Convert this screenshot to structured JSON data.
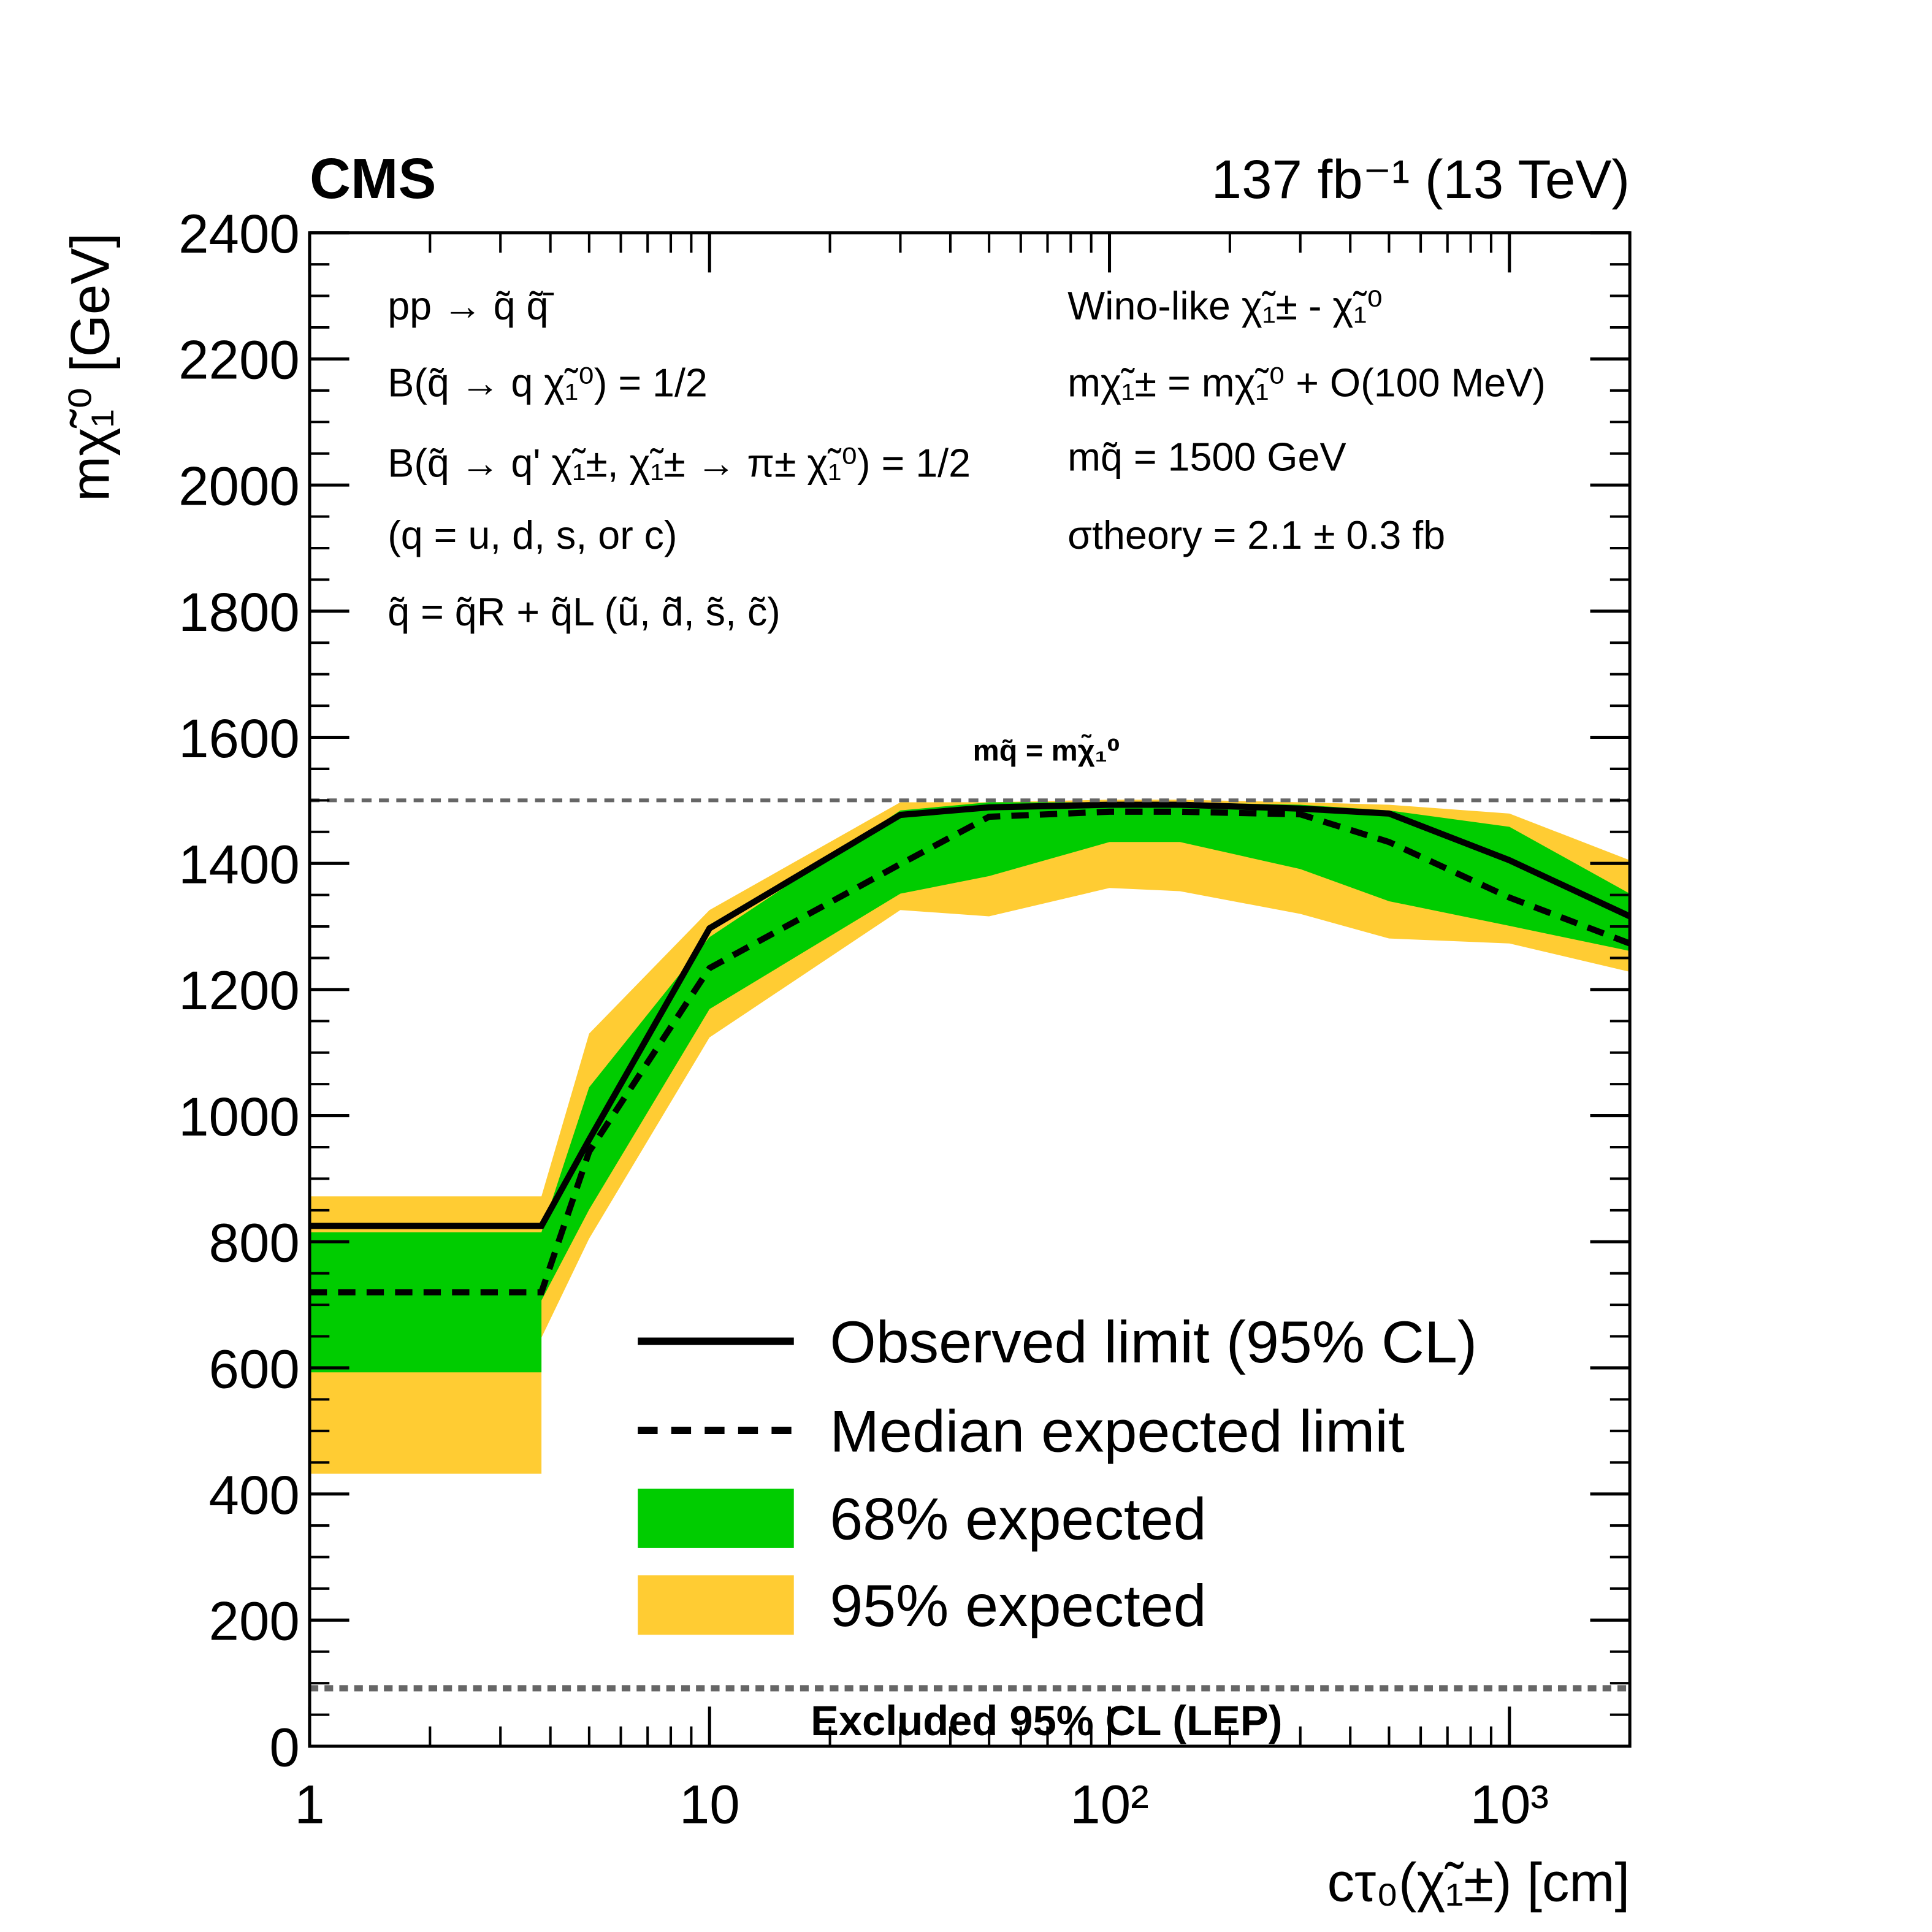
{
  "chart_data": {
    "type": "limit-bands",
    "experiment": "CMS",
    "luminosity": "137 fb⁻¹ (13 TeV)",
    "x_label": "cτ₀(χ̃₁±) [cm]",
    "y_label": "mχ̃₁⁰ [GeV]",
    "annotations_left": [
      "pp → q̃ q̃̄",
      "B(q̃ → q χ̃₁⁰) = 1/2",
      "B(q̃ → q' χ̃₁±, χ̃₁± → π± χ̃₁⁰) = 1/2",
      "(q = u, d, s, or c)",
      "q̃ = q̃R + q̃L (ũ, d̃, s̃, c̃)"
    ],
    "annotations_right": [
      "Wino-like χ̃₁± - χ̃₁⁰",
      "mχ̃₁± = mχ̃₁⁰ + O(100 MeV)",
      "mq̃ = 1500 GeV",
      "σtheory = 2.1 ± 0.3 fb"
    ],
    "reference_lines": [
      {
        "label": "mq̃ = mχ̃₁⁰",
        "value": 1500
      },
      {
        "label": "Excluded 95% CL (LEP)",
        "value": 92
      }
    ],
    "x": [
      1,
      3.8,
      3.8,
      5,
      10,
      30,
      50,
      100,
      150,
      300,
      500,
      1000,
      2000
    ],
    "series": [
      {
        "name": "Observed limit (95% CL)",
        "color": "#000000",
        "style": "solid",
        "values": [
          825,
          825,
          825,
          962,
          1297,
          1477,
          1489,
          1493,
          1493,
          1487,
          1479,
          1405,
          1316
        ]
      },
      {
        "name": "Median expected limit",
        "color": "#000000",
        "style": "dashed",
        "values": [
          720,
          720,
          720,
          943,
          1234,
          1399,
          1474,
          1482,
          1482,
          1478,
          1434,
          1346,
          1273
        ]
      },
      {
        "name": "68% expected",
        "color": "#00cc00",
        "style": "band",
        "upper": [
          815,
          815,
          815,
          1045,
          1283,
          1484,
          1497,
          1497,
          1497,
          1493,
          1484,
          1458,
          1352
        ],
        "lower": [
          593,
          593,
          707,
          851,
          1169,
          1352,
          1380,
          1434,
          1434,
          1391,
          1340,
          1301,
          1261
        ]
      },
      {
        "name": "95% expected",
        "color": "#ffcc33",
        "style": "band",
        "upper": [
          872,
          872,
          872,
          1130,
          1326,
          1497,
          1497,
          1501,
          1501,
          1497,
          1493,
          1479,
          1405
        ],
        "lower": [
          432,
          432,
          648,
          805,
          1124,
          1326,
          1316,
          1361,
          1356,
          1320,
          1281,
          1273,
          1228
        ]
      }
    ],
    "xlim": [
      1,
      2000
    ],
    "log_x": true,
    "xticks": [
      1,
      10,
      {
        "value": 100,
        "label": "10²"
      },
      {
        "value": 1000,
        "label": "10³"
      }
    ],
    "ylim": [
      0,
      2400
    ],
    "yticks": [
      0,
      200,
      400,
      600,
      800,
      1000,
      1200,
      1400,
      1600,
      1800,
      2000,
      2200,
      2400
    ]
  }
}
